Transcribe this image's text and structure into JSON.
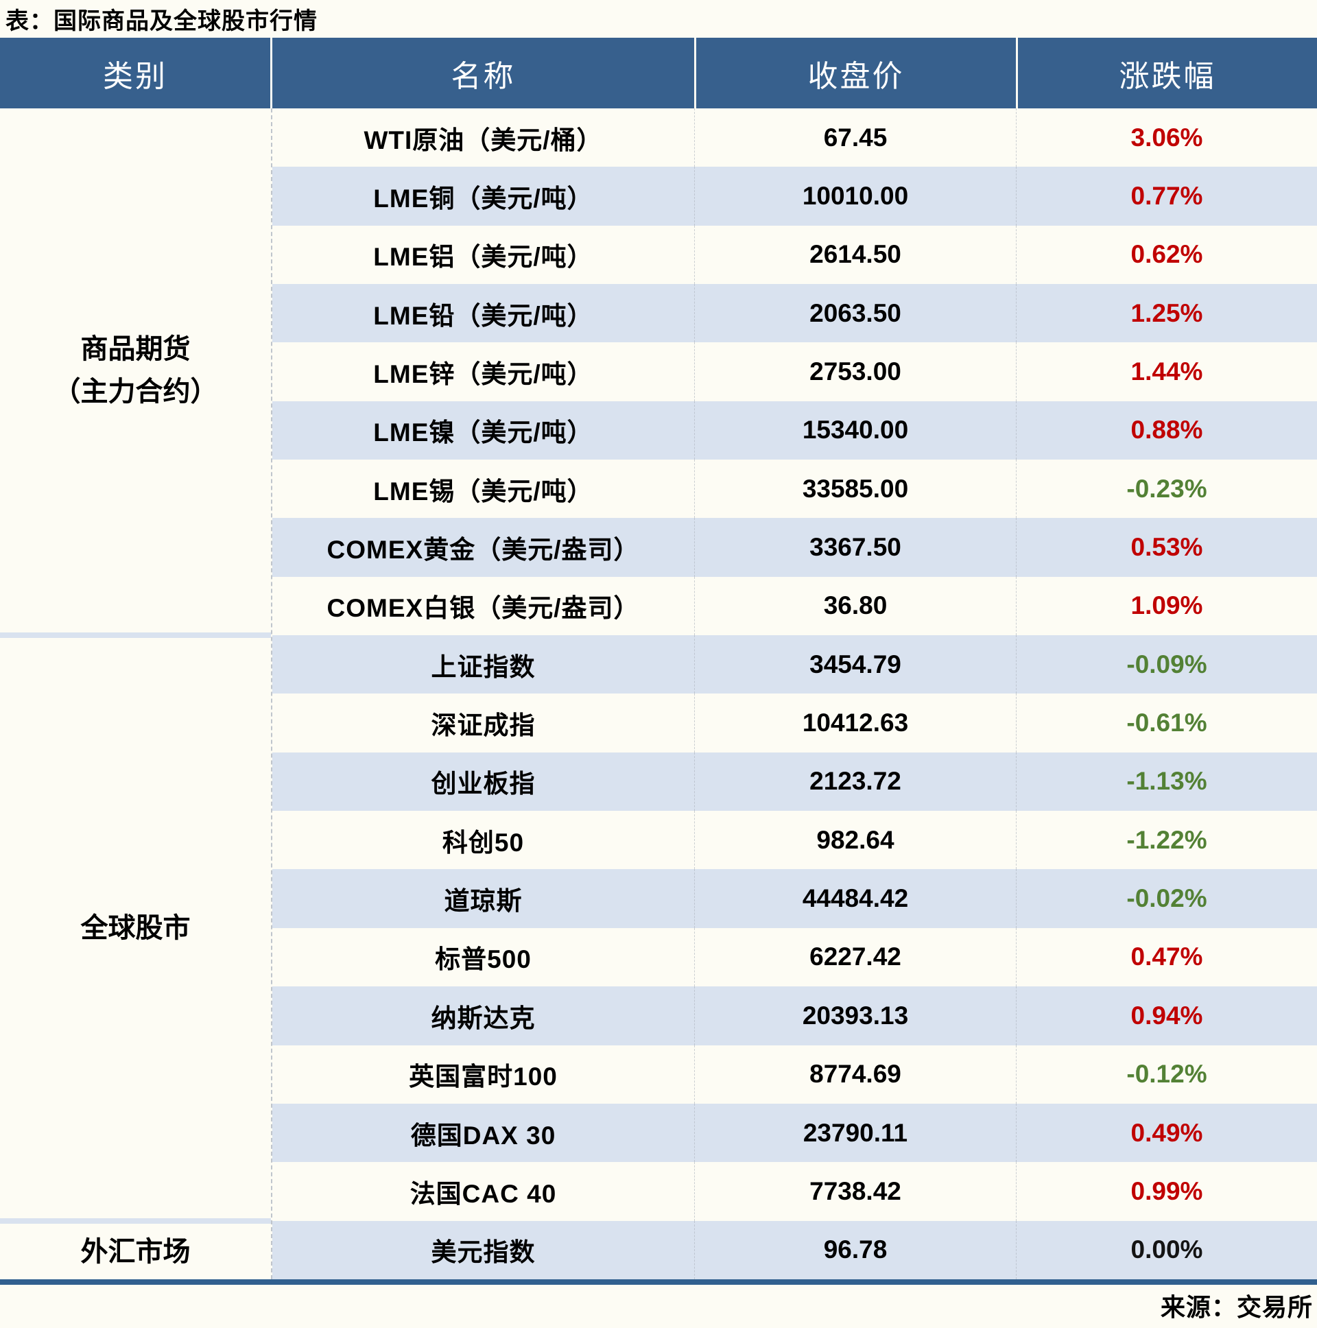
{
  "title": "表：国际商品及全球股市行情",
  "source": "来源：交易所",
  "colors": {
    "header_bg": "#37608D",
    "row_alt_bg": "#D9E2EF",
    "page_bg": "#FDFCF4",
    "up": "#C00000",
    "down": "#538135",
    "flat": "#141414",
    "bottom_rule": "#31608F"
  },
  "headers": {
    "category": "类别",
    "name": "名称",
    "close": "收盘价",
    "change": "涨跌幅"
  },
  "sections": [
    {
      "label_lines": [
        "商品期货",
        "（主力合约）"
      ],
      "rows": [
        {
          "name": "WTI原油（美元/桶）",
          "close": "67.45",
          "chg": "3.06%",
          "dir": "up"
        },
        {
          "name": "LME铜（美元/吨）",
          "close": "10010.00",
          "chg": "0.77%",
          "dir": "up"
        },
        {
          "name": "LME铝（美元/吨）",
          "close": "2614.50",
          "chg": "0.62%",
          "dir": "up"
        },
        {
          "name": "LME铅（美元/吨）",
          "close": "2063.50",
          "chg": "1.25%",
          "dir": "up"
        },
        {
          "name": "LME锌（美元/吨）",
          "close": "2753.00",
          "chg": "1.44%",
          "dir": "up"
        },
        {
          "name": "LME镍（美元/吨）",
          "close": "15340.00",
          "chg": "0.88%",
          "dir": "up"
        },
        {
          "name": "LME锡（美元/吨）",
          "close": "33585.00",
          "chg": "-0.23%",
          "dir": "down"
        },
        {
          "name": "COMEX黄金（美元/盎司）",
          "close": "3367.50",
          "chg": "0.53%",
          "dir": "up"
        },
        {
          "name": "COMEX白银（美元/盎司）",
          "close": "36.80",
          "chg": "1.09%",
          "dir": "up"
        }
      ]
    },
    {
      "label_lines": [
        "全球股市"
      ],
      "rows": [
        {
          "name": "上证指数",
          "close": "3454.79",
          "chg": "-0.09%",
          "dir": "down"
        },
        {
          "name": "深证成指",
          "close": "10412.63",
          "chg": "-0.61%",
          "dir": "down"
        },
        {
          "name": "创业板指",
          "close": "2123.72",
          "chg": "-1.13%",
          "dir": "down"
        },
        {
          "name": "科创50",
          "close": "982.64",
          "chg": "-1.22%",
          "dir": "down"
        },
        {
          "name": "道琼斯",
          "close": "44484.42",
          "chg": "-0.02%",
          "dir": "down"
        },
        {
          "name": "标普500",
          "close": "6227.42",
          "chg": "0.47%",
          "dir": "up"
        },
        {
          "name": "纳斯达克",
          "close": "20393.13",
          "chg": "0.94%",
          "dir": "up"
        },
        {
          "name": "英国富时100",
          "close": "8774.69",
          "chg": "-0.12%",
          "dir": "down"
        },
        {
          "name": "德国DAX 30",
          "close": "23790.11",
          "chg": "0.49%",
          "dir": "up"
        },
        {
          "name": "法国CAC 40",
          "close": "7738.42",
          "chg": "0.99%",
          "dir": "up"
        }
      ]
    },
    {
      "label_lines": [
        "外汇市场"
      ],
      "rows": [
        {
          "name": "美元指数",
          "close": "96.78",
          "chg": "0.00%",
          "dir": "flat"
        }
      ]
    }
  ],
  "chart_data": {
    "type": "table",
    "title": "表：国际商品及全球股市行情",
    "columns": [
      "类别",
      "名称",
      "收盘价",
      "涨跌幅"
    ],
    "rows": [
      {
        "category": "商品期货（主力合约）",
        "name": "WTI原油（美元/桶）",
        "close": 67.45,
        "change_pct": 3.06
      },
      {
        "category": "商品期货（主力合约）",
        "name": "LME铜（美元/吨）",
        "close": 10010.0,
        "change_pct": 0.77
      },
      {
        "category": "商品期货（主力合约）",
        "name": "LME铝（美元/吨）",
        "close": 2614.5,
        "change_pct": 0.62
      },
      {
        "category": "商品期货（主力合约）",
        "name": "LME铅（美元/吨）",
        "close": 2063.5,
        "change_pct": 1.25
      },
      {
        "category": "商品期货（主力合约）",
        "name": "LME锌（美元/吨）",
        "close": 2753.0,
        "change_pct": 1.44
      },
      {
        "category": "商品期货（主力合约）",
        "name": "LME镍（美元/吨）",
        "close": 15340.0,
        "change_pct": 0.88
      },
      {
        "category": "商品期货（主力合约）",
        "name": "LME锡（美元/吨）",
        "close": 33585.0,
        "change_pct": -0.23
      },
      {
        "category": "商品期货（主力合约）",
        "name": "COMEX黄金（美元/盎司）",
        "close": 3367.5,
        "change_pct": 0.53
      },
      {
        "category": "商品期货（主力合约）",
        "name": "COMEX白银（美元/盎司）",
        "close": 36.8,
        "change_pct": 1.09
      },
      {
        "category": "全球股市",
        "name": "上证指数",
        "close": 3454.79,
        "change_pct": -0.09
      },
      {
        "category": "全球股市",
        "name": "深证成指",
        "close": 10412.63,
        "change_pct": -0.61
      },
      {
        "category": "全球股市",
        "name": "创业板指",
        "close": 2123.72,
        "change_pct": -1.13
      },
      {
        "category": "全球股市",
        "name": "科创50",
        "close": 982.64,
        "change_pct": -1.22
      },
      {
        "category": "全球股市",
        "name": "道琼斯",
        "close": 44484.42,
        "change_pct": -0.02
      },
      {
        "category": "全球股市",
        "name": "标普500",
        "close": 6227.42,
        "change_pct": 0.47
      },
      {
        "category": "全球股市",
        "name": "纳斯达克",
        "close": 20393.13,
        "change_pct": 0.94
      },
      {
        "category": "全球股市",
        "name": "英国富时100",
        "close": 8774.69,
        "change_pct": -0.12
      },
      {
        "category": "全球股市",
        "name": "德国DAX 30",
        "close": 23790.11,
        "change_pct": 0.49
      },
      {
        "category": "全球股市",
        "name": "法国CAC 40",
        "close": 7738.42,
        "change_pct": 0.99
      },
      {
        "category": "外汇市场",
        "name": "美元指数",
        "close": 96.78,
        "change_pct": 0.0
      }
    ],
    "notes": "positive change shown red, negative shown green, zero shown black; source line: 来源：交易所"
  }
}
